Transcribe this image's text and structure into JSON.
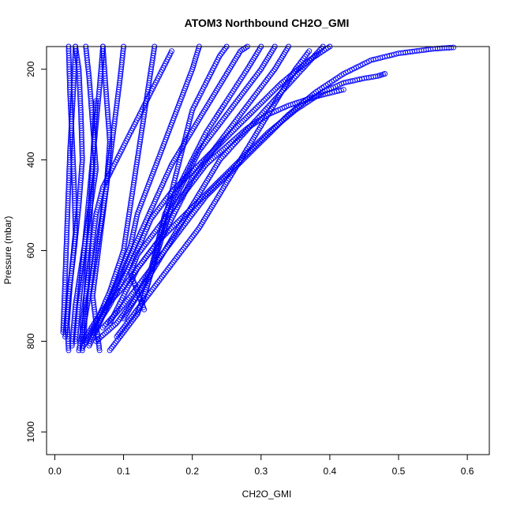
{
  "chart_data": {
    "type": "scatter",
    "title": "ATOM3 Northbound CH2O_GMI",
    "xlabel": "CH2O_GMI",
    "ylabel": "Pressure (mbar)",
    "xlim": [
      -0.012,
      0.632
    ],
    "ylim": [
      1050,
      150
    ],
    "y_inverted": true,
    "x_ticks": [
      "0.0",
      "0.1",
      "0.2",
      "0.3",
      "0.4",
      "0.5",
      "0.6"
    ],
    "x_tick_values": [
      0,
      0.1,
      0.2,
      0.3,
      0.4,
      0.5,
      0.6
    ],
    "y_ticks": [
      "200",
      "400",
      "600",
      "800",
      "1000"
    ],
    "y_tick_values": [
      200,
      400,
      600,
      800,
      1000
    ],
    "marker": "open-circle",
    "series_color": "#0000ff",
    "grid": false,
    "profiles": [
      {
        "points": [
          [
            0.02,
            820
          ],
          [
            0.018,
            760
          ],
          [
            0.022,
            680
          ],
          [
            0.03,
            560
          ],
          [
            0.028,
            450
          ],
          [
            0.025,
            350
          ],
          [
            0.022,
            250
          ],
          [
            0.02,
            150
          ]
        ]
      },
      {
        "points": [
          [
            0.015,
            790
          ],
          [
            0.02,
            700
          ],
          [
            0.028,
            600
          ],
          [
            0.035,
            500
          ],
          [
            0.04,
            400
          ],
          [
            0.038,
            300
          ],
          [
            0.035,
            200
          ],
          [
            0.03,
            150
          ]
        ]
      },
      {
        "points": [
          [
            0.025,
            810
          ],
          [
            0.03,
            720
          ],
          [
            0.04,
            620
          ],
          [
            0.05,
            520
          ],
          [
            0.06,
            420
          ],
          [
            0.055,
            320
          ],
          [
            0.05,
            220
          ],
          [
            0.045,
            150
          ]
        ]
      },
      {
        "points": [
          [
            0.035,
            820
          ],
          [
            0.045,
            740
          ],
          [
            0.055,
            650
          ],
          [
            0.065,
            560
          ],
          [
            0.075,
            460
          ],
          [
            0.08,
            360
          ],
          [
            0.075,
            260
          ],
          [
            0.07,
            150
          ]
        ]
      },
      {
        "points": [
          [
            0.04,
            815
          ],
          [
            0.06,
            760
          ],
          [
            0.08,
            690
          ],
          [
            0.1,
            600
          ],
          [
            0.11,
            500
          ],
          [
            0.12,
            400
          ],
          [
            0.13,
            300
          ],
          [
            0.14,
            200
          ],
          [
            0.145,
            150
          ]
        ]
      },
      {
        "points": [
          [
            0.05,
            800
          ],
          [
            0.07,
            740
          ],
          [
            0.09,
            670
          ],
          [
            0.11,
            590
          ],
          [
            0.12,
            520
          ],
          [
            0.14,
            440
          ],
          [
            0.16,
            360
          ],
          [
            0.18,
            280
          ],
          [
            0.2,
            200
          ],
          [
            0.21,
            150
          ]
        ]
      },
      {
        "points": [
          [
            0.06,
            800
          ],
          [
            0.09,
            760
          ],
          [
            0.12,
            700
          ],
          [
            0.14,
            640
          ],
          [
            0.15,
            580
          ],
          [
            0.16,
            520
          ],
          [
            0.18,
            460
          ],
          [
            0.2,
            400
          ],
          [
            0.22,
            340
          ],
          [
            0.25,
            270
          ],
          [
            0.28,
            200
          ],
          [
            0.3,
            150
          ]
        ]
      },
      {
        "points": [
          [
            0.045,
            790
          ],
          [
            0.07,
            730
          ],
          [
            0.1,
            680
          ],
          [
            0.13,
            620
          ],
          [
            0.16,
            560
          ],
          [
            0.18,
            500
          ],
          [
            0.2,
            440
          ],
          [
            0.23,
            380
          ],
          [
            0.26,
            320
          ],
          [
            0.29,
            260
          ],
          [
            0.32,
            200
          ],
          [
            0.34,
            150
          ]
        ]
      },
      {
        "points": [
          [
            0.055,
            780
          ],
          [
            0.08,
            720
          ],
          [
            0.1,
            660
          ],
          [
            0.12,
            600
          ],
          [
            0.14,
            530
          ],
          [
            0.17,
            470
          ],
          [
            0.21,
            410
          ],
          [
            0.25,
            350
          ],
          [
            0.29,
            290
          ],
          [
            0.33,
            230
          ],
          [
            0.37,
            180
          ],
          [
            0.4,
            150
          ]
        ]
      },
      {
        "points": [
          [
            0.07,
            770
          ],
          [
            0.1,
            720
          ],
          [
            0.13,
            660
          ],
          [
            0.16,
            600
          ],
          [
            0.19,
            540
          ],
          [
            0.22,
            480
          ],
          [
            0.26,
            420
          ],
          [
            0.3,
            360
          ],
          [
            0.34,
            300
          ],
          [
            0.38,
            250
          ],
          [
            0.42,
            210
          ],
          [
            0.46,
            180
          ],
          [
            0.5,
            165
          ],
          [
            0.55,
            155
          ],
          [
            0.58,
            152
          ]
        ]
      },
      {
        "points": [
          [
            0.08,
            760
          ],
          [
            0.1,
            700
          ],
          [
            0.12,
            640
          ],
          [
            0.15,
            580
          ],
          [
            0.19,
            520
          ],
          [
            0.23,
            460
          ],
          [
            0.27,
            400
          ],
          [
            0.31,
            340
          ],
          [
            0.35,
            290
          ],
          [
            0.39,
            250
          ],
          [
            0.42,
            230
          ],
          [
            0.45,
            220
          ],
          [
            0.47,
            215
          ],
          [
            0.48,
            210
          ]
        ]
      },
      {
        "points": [
          [
            0.1,
            750
          ],
          [
            0.12,
            700
          ],
          [
            0.14,
            650
          ],
          [
            0.16,
            600
          ],
          [
            0.18,
            550
          ],
          [
            0.2,
            500
          ],
          [
            0.22,
            450
          ],
          [
            0.24,
            400
          ],
          [
            0.27,
            350
          ],
          [
            0.3,
            300
          ],
          [
            0.33,
            250
          ],
          [
            0.36,
            200
          ],
          [
            0.39,
            150
          ]
        ]
      },
      {
        "points": [
          [
            0.12,
            740
          ],
          [
            0.13,
            700
          ],
          [
            0.14,
            650
          ],
          [
            0.15,
            600
          ],
          [
            0.16,
            550
          ],
          [
            0.17,
            500
          ],
          [
            0.19,
            440
          ],
          [
            0.21,
            380
          ],
          [
            0.24,
            320
          ],
          [
            0.27,
            260
          ],
          [
            0.3,
            200
          ],
          [
            0.32,
            150
          ]
        ]
      },
      {
        "points": [
          [
            0.065,
            820
          ],
          [
            0.06,
            760
          ],
          [
            0.055,
            700
          ],
          [
            0.06,
            640
          ],
          [
            0.065,
            580
          ],
          [
            0.07,
            520
          ],
          [
            0.075,
            460
          ],
          [
            0.08,
            400
          ],
          [
            0.085,
            340
          ],
          [
            0.09,
            280
          ],
          [
            0.095,
            220
          ],
          [
            0.1,
            150
          ]
        ]
      },
      {
        "points": [
          [
            0.03,
            800
          ],
          [
            0.035,
            720
          ],
          [
            0.04,
            640
          ],
          [
            0.045,
            560
          ],
          [
            0.05,
            480
          ],
          [
            0.055,
            400
          ],
          [
            0.06,
            320
          ],
          [
            0.065,
            240
          ],
          [
            0.07,
            150
          ]
        ]
      },
      {
        "points": [
          [
            0.012,
            780
          ],
          [
            0.014,
            700
          ],
          [
            0.016,
            620
          ],
          [
            0.018,
            540
          ],
          [
            0.02,
            460
          ],
          [
            0.022,
            380
          ],
          [
            0.025,
            300
          ],
          [
            0.028,
            220
          ],
          [
            0.03,
            150
          ]
        ]
      },
      {
        "points": [
          [
            0.08,
            820
          ],
          [
            0.1,
            780
          ],
          [
            0.12,
            740
          ],
          [
            0.13,
            700
          ],
          [
            0.14,
            650
          ],
          [
            0.15,
            590
          ],
          [
            0.16,
            530
          ],
          [
            0.17,
            470
          ],
          [
            0.18,
            410
          ],
          [
            0.19,
            350
          ],
          [
            0.2,
            290
          ],
          [
            0.22,
            230
          ],
          [
            0.24,
            170
          ],
          [
            0.25,
            150
          ]
        ]
      },
      {
        "points": [
          [
            0.05,
            810
          ],
          [
            0.065,
            760
          ],
          [
            0.08,
            710
          ],
          [
            0.095,
            660
          ],
          [
            0.11,
            610
          ],
          [
            0.125,
            560
          ],
          [
            0.14,
            510
          ],
          [
            0.155,
            460
          ],
          [
            0.17,
            410
          ],
          [
            0.19,
            360
          ],
          [
            0.21,
            310
          ],
          [
            0.23,
            260
          ],
          [
            0.25,
            210
          ],
          [
            0.27,
            160
          ],
          [
            0.28,
            150
          ]
        ]
      },
      {
        "points": [
          [
            0.09,
            790
          ],
          [
            0.11,
            750
          ],
          [
            0.13,
            710
          ],
          [
            0.15,
            670
          ],
          [
            0.17,
            630
          ],
          [
            0.19,
            590
          ],
          [
            0.21,
            550
          ],
          [
            0.23,
            500
          ],
          [
            0.25,
            450
          ],
          [
            0.27,
            400
          ],
          [
            0.29,
            350
          ],
          [
            0.31,
            300
          ],
          [
            0.33,
            250
          ],
          [
            0.35,
            200
          ],
          [
            0.37,
            160
          ]
        ]
      },
      {
        "points": [
          [
            0.04,
            820
          ],
          [
            0.04,
            760
          ],
          [
            0.045,
            700
          ],
          [
            0.05,
            640
          ],
          [
            0.055,
            580
          ],
          [
            0.06,
            520
          ],
          [
            0.07,
            460
          ],
          [
            0.09,
            400
          ],
          [
            0.11,
            340
          ],
          [
            0.13,
            280
          ],
          [
            0.15,
            220
          ],
          [
            0.17,
            160
          ]
        ]
      },
      {
        "points": [
          [
            0.06,
            270
          ],
          [
            0.058,
            320
          ],
          [
            0.056,
            380
          ],
          [
            0.054,
            440
          ],
          [
            0.052,
            500
          ],
          [
            0.05,
            560
          ],
          [
            0.048,
            620
          ],
          [
            0.046,
            680
          ],
          [
            0.044,
            740
          ],
          [
            0.042,
            800
          ]
        ]
      },
      {
        "points": [
          [
            0.13,
            730
          ],
          [
            0.12,
            690
          ],
          [
            0.11,
            650
          ],
          [
            0.12,
            610
          ],
          [
            0.14,
            570
          ],
          [
            0.16,
            530
          ],
          [
            0.18,
            490
          ],
          [
            0.2,
            450
          ],
          [
            0.22,
            410
          ],
          [
            0.25,
            370
          ],
          [
            0.28,
            330
          ],
          [
            0.31,
            300
          ],
          [
            0.34,
            280
          ],
          [
            0.38,
            260
          ],
          [
            0.42,
            245
          ]
        ]
      }
    ]
  }
}
